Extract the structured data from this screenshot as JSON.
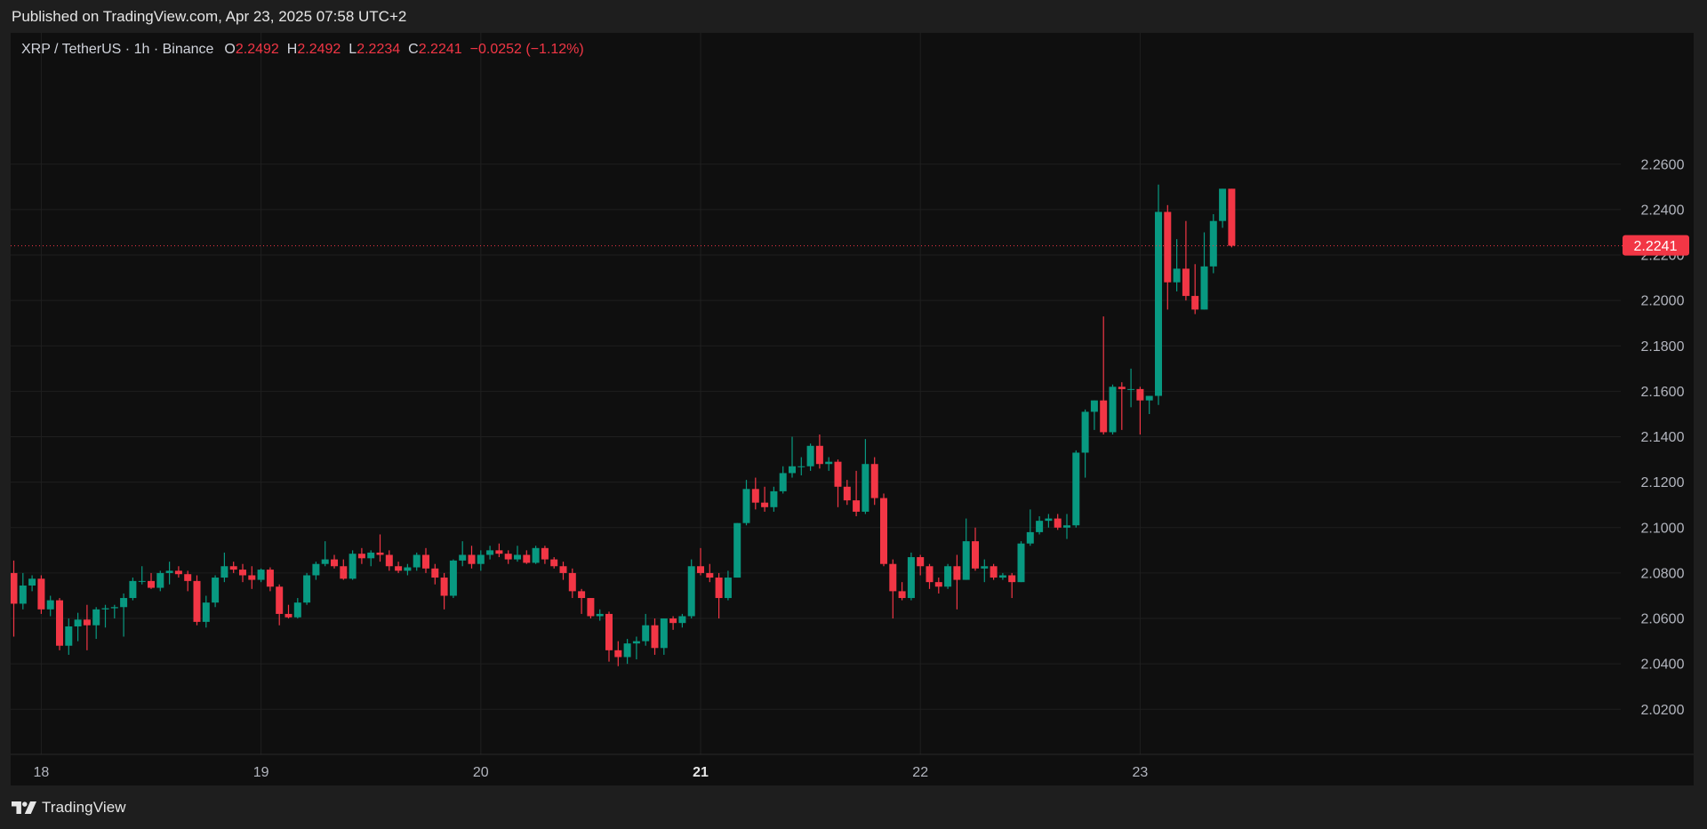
{
  "header": {
    "published": "Published on TradingView.com, Apr 23, 2025 07:58 UTC+2"
  },
  "legend": {
    "symbol": "XRP / TetherUS · 1h · Binance",
    "o_label": "O",
    "o_value": "2.2492",
    "h_label": "H",
    "h_value": "2.2492",
    "l_label": "L",
    "l_value": "2.2234",
    "c_label": "C",
    "c_value": "2.2241",
    "change": "−0.0252 (−1.12%)"
  },
  "footer": {
    "brand": "TradingView",
    "logo_icon": "tradingview-logo-icon"
  },
  "colors": {
    "up": "#089981",
    "down": "#f23645",
    "grid": "#1f1f1f",
    "axis_text": "#b2b5be",
    "background": "#0f0f0f"
  },
  "chart_data": {
    "type": "candlestick",
    "interval": "1h",
    "symbol": "XRP / TetherUS",
    "exchange": "Binance",
    "last_price": "2.2241",
    "price_line": 2.2241,
    "ylim": [
      2.013,
      2.273
    ],
    "y_ticks": [
      "2.0200",
      "2.0400",
      "2.0600",
      "2.0800",
      "2.1000",
      "2.1200",
      "2.1400",
      "2.1600",
      "2.1800",
      "2.2000",
      "2.2200",
      "2.2400",
      "2.2600"
    ],
    "x_ticks": [
      {
        "label": "18",
        "index": 3,
        "bold": false
      },
      {
        "label": "19",
        "index": 27,
        "bold": false
      },
      {
        "label": "20",
        "index": 51,
        "bold": false
      },
      {
        "label": "21",
        "index": 75,
        "bold": true
      },
      {
        "label": "22",
        "index": 99,
        "bold": false
      },
      {
        "label": "23",
        "index": 123,
        "bold": false
      }
    ],
    "xlim": [
      -0.5,
      142.5
    ],
    "candles": [
      [
        2.08,
        2.0855,
        2.052,
        2.0665
      ],
      [
        2.0665,
        2.08,
        2.064,
        2.0745
      ],
      [
        2.0745,
        2.079,
        2.072,
        2.0775
      ],
      [
        2.0775,
        2.079,
        2.062,
        2.064
      ],
      [
        2.064,
        2.07,
        2.061,
        2.068
      ],
      [
        2.068,
        2.069,
        2.046,
        2.048
      ],
      [
        2.048,
        2.06,
        2.044,
        2.0565
      ],
      [
        2.0565,
        2.0625,
        2.05,
        2.0595
      ],
      [
        2.0595,
        2.066,
        2.046,
        2.057
      ],
      [
        2.057,
        2.065,
        2.051,
        2.064
      ],
      [
        2.064,
        2.066,
        2.056,
        2.0645
      ],
      [
        2.0645,
        2.066,
        2.06,
        2.065
      ],
      [
        2.065,
        2.071,
        2.052,
        2.069
      ],
      [
        2.069,
        2.078,
        2.068,
        2.0765
      ],
      [
        2.0765,
        2.083,
        2.075,
        2.0765
      ],
      [
        2.0765,
        2.08,
        2.073,
        2.0735
      ],
      [
        2.0735,
        2.081,
        2.072,
        2.08
      ],
      [
        2.08,
        2.085,
        2.075,
        2.081
      ],
      [
        2.081,
        2.083,
        2.078,
        2.0795
      ],
      [
        2.0795,
        2.081,
        2.072,
        2.0765
      ],
      [
        2.0765,
        2.079,
        2.057,
        2.0585
      ],
      [
        2.0585,
        2.07,
        2.056,
        2.067
      ],
      [
        2.067,
        2.079,
        2.065,
        2.078
      ],
      [
        2.078,
        2.089,
        2.076,
        2.083
      ],
      [
        2.083,
        2.085,
        2.08,
        2.0815
      ],
      [
        2.0815,
        2.084,
        2.076,
        2.079
      ],
      [
        2.079,
        2.083,
        2.073,
        2.077
      ],
      [
        2.077,
        2.082,
        2.076,
        2.0815
      ],
      [
        2.0815,
        2.0825,
        2.072,
        2.074
      ],
      [
        2.074,
        2.075,
        2.057,
        2.062
      ],
      [
        2.062,
        2.066,
        2.06,
        2.0605
      ],
      [
        2.0605,
        2.069,
        2.06,
        2.067
      ],
      [
        2.067,
        2.08,
        2.066,
        2.079
      ],
      [
        2.079,
        2.085,
        2.077,
        2.084
      ],
      [
        2.084,
        2.094,
        2.083,
        2.086
      ],
      [
        2.086,
        2.088,
        2.082,
        2.083
      ],
      [
        2.083,
        2.086,
        2.077,
        2.0775
      ],
      [
        2.0775,
        2.09,
        2.077,
        2.0885
      ],
      [
        2.0885,
        2.091,
        2.084,
        2.0865
      ],
      [
        2.0865,
        2.09,
        2.083,
        2.089
      ],
      [
        2.089,
        2.097,
        2.085,
        2.088
      ],
      [
        2.088,
        2.09,
        2.081,
        2.083
      ],
      [
        2.083,
        2.085,
        2.08,
        2.081
      ],
      [
        2.081,
        2.084,
        2.079,
        2.0825
      ],
      [
        2.0825,
        2.089,
        2.081,
        2.088
      ],
      [
        2.088,
        2.091,
        2.08,
        2.082
      ],
      [
        2.082,
        2.084,
        2.075,
        2.078
      ],
      [
        2.078,
        2.08,
        2.064,
        2.07
      ],
      [
        2.07,
        2.086,
        2.069,
        2.0855
      ],
      [
        2.0855,
        2.094,
        2.083,
        2.088
      ],
      [
        2.088,
        2.092,
        2.082,
        2.084
      ],
      [
        2.084,
        2.09,
        2.081,
        2.088
      ],
      [
        2.088,
        2.092,
        2.086,
        2.09
      ],
      [
        2.09,
        2.093,
        2.087,
        2.0885
      ],
      [
        2.0885,
        2.09,
        2.084,
        2.086
      ],
      [
        2.086,
        2.092,
        2.085,
        2.088
      ],
      [
        2.088,
        2.09,
        2.084,
        2.0845
      ],
      [
        2.0845,
        2.092,
        2.084,
        2.091
      ],
      [
        2.091,
        2.092,
        2.084,
        2.086
      ],
      [
        2.086,
        2.087,
        2.082,
        2.083
      ],
      [
        2.083,
        2.085,
        2.077,
        2.08
      ],
      [
        2.08,
        2.082,
        2.069,
        2.072
      ],
      [
        2.072,
        2.073,
        2.062,
        2.069
      ],
      [
        2.069,
        2.069,
        2.06,
        2.061
      ],
      [
        2.061,
        2.064,
        2.059,
        2.062
      ],
      [
        2.062,
        2.063,
        2.041,
        2.046
      ],
      [
        2.046,
        2.05,
        2.039,
        2.043
      ],
      [
        2.043,
        2.051,
        2.04,
        2.049
      ],
      [
        2.049,
        2.052,
        2.042,
        2.05
      ],
      [
        2.05,
        2.062,
        2.048,
        2.057
      ],
      [
        2.057,
        2.06,
        2.044,
        2.047
      ],
      [
        2.047,
        2.06,
        2.044,
        2.06
      ],
      [
        2.06,
        2.061,
        2.055,
        2.058
      ],
      [
        2.058,
        2.062,
        2.056,
        2.061
      ],
      [
        2.061,
        2.086,
        2.06,
        2.083
      ],
      [
        2.083,
        2.091,
        2.079,
        2.08
      ],
      [
        2.08,
        2.084,
        2.076,
        2.078
      ],
      [
        2.078,
        2.08,
        2.06,
        2.069
      ],
      [
        2.069,
        2.081,
        2.068,
        2.078
      ],
      [
        2.078,
        2.102,
        2.078,
        2.102
      ],
      [
        2.102,
        2.121,
        2.101,
        2.117
      ],
      [
        2.117,
        2.122,
        2.108,
        2.111
      ],
      [
        2.111,
        2.118,
        2.107,
        2.109
      ],
      [
        2.109,
        2.118,
        2.107,
        2.116
      ],
      [
        2.116,
        2.127,
        2.115,
        2.124
      ],
      [
        2.124,
        2.14,
        2.122,
        2.127
      ],
      [
        2.127,
        2.131,
        2.123,
        2.127
      ],
      [
        2.127,
        2.137,
        2.125,
        2.136
      ],
      [
        2.136,
        2.141,
        2.126,
        2.128
      ],
      [
        2.128,
        2.131,
        2.125,
        2.129
      ],
      [
        2.129,
        2.13,
        2.109,
        2.118
      ],
      [
        2.118,
        2.121,
        2.11,
        2.112
      ],
      [
        2.112,
        2.125,
        2.105,
        2.107
      ],
      [
        2.107,
        2.139,
        2.106,
        2.128
      ],
      [
        2.128,
        2.131,
        2.11,
        2.113
      ],
      [
        2.113,
        2.115,
        2.083,
        2.084
      ],
      [
        2.084,
        2.086,
        2.06,
        2.072
      ],
      [
        2.072,
        2.076,
        2.068,
        2.069
      ],
      [
        2.069,
        2.089,
        2.068,
        2.087
      ],
      [
        2.087,
        2.088,
        2.079,
        2.083
      ],
      [
        2.083,
        2.084,
        2.073,
        2.076
      ],
      [
        2.076,
        2.078,
        2.071,
        2.074
      ],
      [
        2.074,
        2.084,
        2.073,
        2.083
      ],
      [
        2.083,
        2.088,
        2.064,
        2.077
      ],
      [
        2.077,
        2.104,
        2.077,
        2.094
      ],
      [
        2.094,
        2.1,
        2.081,
        2.082
      ],
      [
        2.082,
        2.086,
        2.076,
        2.083
      ],
      [
        2.083,
        2.084,
        2.077,
        2.078
      ],
      [
        2.078,
        2.08,
        2.077,
        2.079
      ],
      [
        2.079,
        2.08,
        2.069,
        2.076
      ],
      [
        2.076,
        2.094,
        2.076,
        2.093
      ],
      [
        2.093,
        2.108,
        2.092,
        2.098
      ],
      [
        2.098,
        2.105,
        2.097,
        2.103
      ],
      [
        2.103,
        2.106,
        2.1,
        2.104
      ],
      [
        2.104,
        2.106,
        2.099,
        2.1
      ],
      [
        2.1,
        2.106,
        2.095,
        2.101
      ],
      [
        2.101,
        2.134,
        2.1,
        2.133
      ],
      [
        2.133,
        2.152,
        2.122,
        2.151
      ],
      [
        2.151,
        2.156,
        2.143,
        2.156
      ],
      [
        2.156,
        2.193,
        2.141,
        2.142
      ],
      [
        2.142,
        2.163,
        2.141,
        2.162
      ],
      [
        2.162,
        2.164,
        2.143,
        2.161
      ],
      [
        2.161,
        2.17,
        2.153,
        2.161
      ],
      [
        2.161,
        2.162,
        2.141,
        2.156
      ],
      [
        2.156,
        2.158,
        2.15,
        2.158
      ],
      [
        2.158,
        2.251,
        2.154,
        2.239
      ],
      [
        2.239,
        2.242,
        2.196,
        2.208
      ],
      [
        2.208,
        2.227,
        2.204,
        2.214
      ],
      [
        2.214,
        2.235,
        2.2,
        2.202
      ],
      [
        2.202,
        2.216,
        2.194,
        2.196
      ],
      [
        2.196,
        2.23,
        2.196,
        2.215
      ],
      [
        2.215,
        2.238,
        2.212,
        2.235
      ],
      [
        2.235,
        2.2492,
        2.232,
        2.2492
      ],
      [
        2.2492,
        2.2492,
        2.2234,
        2.2241
      ]
    ]
  }
}
